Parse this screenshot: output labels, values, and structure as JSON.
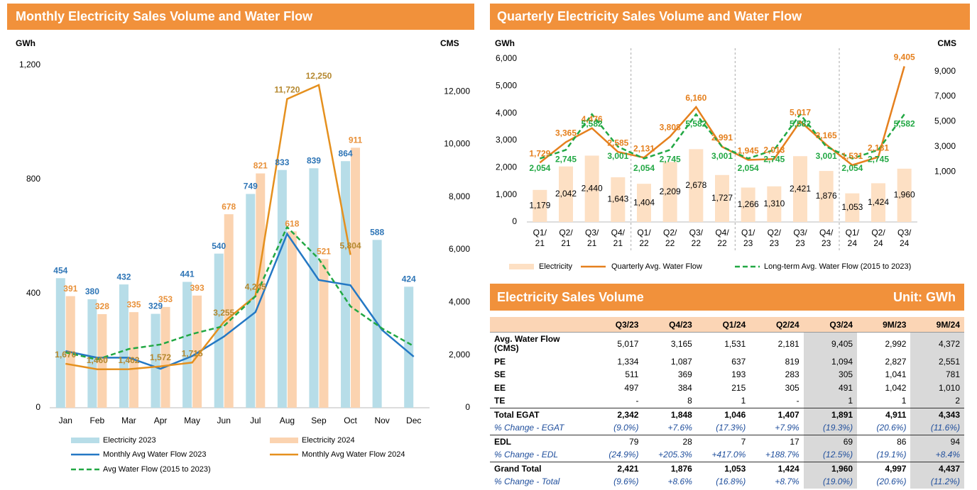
{
  "chart_data": [
    {
      "type": "combo",
      "title": "Monthly Electricity Sales Volume and Water Flow",
      "y_label": "GWh",
      "y2_label": "CMS",
      "categories": [
        "Jan",
        "Feb",
        "Mar",
        "Apr",
        "May",
        "Jun",
        "Jul",
        "Aug",
        "Sep",
        "Oct",
        "Nov",
        "Dec"
      ],
      "ylim": [
        0,
        1200
      ],
      "yticks": [
        0,
        400,
        800,
        {
          "value": 1200,
          "label": "1,200"
        }
      ],
      "y2lim": [
        0,
        13000
      ],
      "y2ticks": [
        0,
        {
          "value": 2000,
          "label": "2,000"
        },
        {
          "value": 4000,
          "label": "4,000"
        },
        {
          "value": 6000,
          "label": "6,000"
        },
        {
          "value": 8000,
          "label": "8,000"
        },
        {
          "value": 10000,
          "label": "10,000"
        },
        {
          "value": 12000,
          "label": "12,000"
        }
      ],
      "series": [
        {
          "name": "Electricity 2023",
          "type": "bar",
          "color": "#b7dde8",
          "label_color": "#2e75b6",
          "values": [
            454,
            380,
            432,
            329,
            441,
            540,
            749,
            833,
            839,
            864,
            588,
            424
          ]
        },
        {
          "name": "Electricity 2024",
          "type": "bar",
          "color": "#fbd3b0",
          "label_color": "#e8913a",
          "values": [
            391,
            328,
            335,
            353,
            393,
            678,
            821,
            618,
            521,
            911,
            null,
            null
          ]
        },
        {
          "name": "Monthly Avg Water Flow 2023",
          "type": "line",
          "axis": "y2",
          "color": "#2478c4",
          "values": [
            2150,
            1900,
            1900,
            1480,
            1960,
            2700,
            3630,
            6600,
            4850,
            4650,
            2950,
            1940
          ]
        },
        {
          "name": "Monthly Avg Water Flow 2024",
          "type": "line",
          "axis": "y2",
          "color": "#e5901e",
          "label_color": "#b5882f",
          "values": [
            1670,
            1460,
            1462,
            1572,
            1715,
            3255,
            4245,
            11720,
            12250,
            5804,
            null,
            null
          ],
          "value_labels": [
            "1,670",
            "1,460",
            "1,462",
            "1,572",
            "1,715",
            "3,255",
            "4,245",
            "11,720",
            "12,250",
            "5,804",
            null,
            null
          ]
        },
        {
          "name": "Avg Water Flow (2015 to 2023)",
          "type": "line",
          "axis": "y2",
          "dash": true,
          "color": "#22a844",
          "values": [
            2100,
            1830,
            2230,
            2400,
            2800,
            3100,
            4230,
            6860,
            5650,
            3850,
            3010,
            2340
          ]
        }
      ]
    },
    {
      "type": "combo",
      "title": "Quarterly Electricity Sales Volume and Water Flow",
      "y_label": "GWh",
      "y2_label": "CMS",
      "categories": [
        "Q1/ 21",
        "Q2/ 21",
        "Q3/ 21",
        "Q4/ 21",
        "Q1/ 22",
        "Q2/ 22",
        "Q3/ 22",
        "Q4/ 22",
        "Q1/ 23",
        "Q2/ 23",
        "Q3/ 23",
        "Q4/ 23",
        "Q1/ 24",
        "Q2/ 24",
        "Q3/ 24"
      ],
      "ylim": [
        0,
        6000
      ],
      "yticks": [
        0,
        {
          "value": 1000,
          "label": "1,000"
        },
        {
          "value": 2000,
          "label": "2,000"
        },
        {
          "value": 3000,
          "label": "3,000"
        },
        {
          "value": 4000,
          "label": "4,000"
        },
        {
          "value": 5000,
          "label": "5,000"
        },
        {
          "value": 6000,
          "label": "6,000"
        }
      ],
      "y2lim": [
        -3000,
        10000
      ],
      "y2ticks": [
        {
          "value": 1000,
          "label": "1,000"
        },
        {
          "value": 3000,
          "label": "3,000"
        },
        {
          "value": 5000,
          "label": "5,000"
        },
        {
          "value": 7000,
          "label": "7,000"
        },
        {
          "value": 9000,
          "label": "9,000"
        }
      ],
      "series": [
        {
          "name": "Electricity",
          "type": "bar",
          "color": "#fde0c4",
          "label_color": "#000000",
          "values": [
            1179,
            2042,
            2440,
            1643,
            1404,
            2209,
            2678,
            1727,
            1266,
            1310,
            2421,
            1876,
            1053,
            1424,
            1960
          ],
          "value_labels": [
            "1,179",
            "2,042",
            "2,440",
            "1,643",
            "1,404",
            "2,209",
            "2,678",
            "1,727",
            "1,266",
            "1,310",
            "2,421",
            "1,876",
            "1,053",
            "1,424",
            "1,960"
          ]
        },
        {
          "name": "Quarterly Avg. Water Flow",
          "type": "line",
          "axis": "y2",
          "color": "#e5801e",
          "label_color": "#e5801e",
          "values": [
            1729,
            3365,
            4476,
            2585,
            2131,
            3808,
            6160,
            2991,
            1945,
            2013,
            5017,
            3165,
            1531,
            2181,
            9405
          ],
          "value_labels": [
            "1,729",
            "3,365",
            "4,476",
            "2,585",
            "2,131",
            "3,808",
            "6,160",
            "2,991",
            "1,945",
            "2,013",
            "5,017",
            "3,165",
            "1,531",
            "2,181",
            "9,405"
          ]
        },
        {
          "name": "Long-term Avg. Water Flow (2015 to 2023)",
          "type": "line",
          "axis": "y2",
          "dash": true,
          "color": "#22a844",
          "label_color": "#22a844",
          "values": [
            2054,
            2745,
            5582,
            3001,
            2054,
            2745,
            5582,
            3001,
            2054,
            2745,
            5582,
            3001,
            2054,
            2745,
            5582
          ],
          "value_labels": [
            "2,054",
            "2,745",
            "5,582",
            "3,001",
            "2,054",
            "2,745",
            "5,582",
            "3,001",
            "2,054",
            "2,745",
            "5,582",
            "3,001",
            "2,054",
            "2,745",
            "5,582"
          ]
        }
      ]
    }
  ],
  "table": {
    "title": "Electricity Sales Volume",
    "unit": "Unit: GWh",
    "columns": [
      "Q3/23",
      "Q4/23",
      "Q1/24",
      "Q2/24",
      "Q3/24",
      "9M/23",
      "9M/24"
    ],
    "rows": [
      {
        "label": "Avg. Water Flow (CMS)",
        "cells": [
          "5,017",
          "3,165",
          "1,531",
          "2,181",
          "9,405",
          "2,992",
          "4,372"
        ]
      },
      {
        "label": "PE",
        "cells": [
          "1,334",
          "1,087",
          "637",
          "819",
          "1,094",
          "2,827",
          "2,551"
        ]
      },
      {
        "label": "SE",
        "cells": [
          "511",
          "369",
          "193",
          "283",
          "305",
          "1,041",
          "781"
        ]
      },
      {
        "label": "EE",
        "cells": [
          "497",
          "384",
          "215",
          "305",
          "491",
          "1,042",
          "1,010"
        ]
      },
      {
        "label": "TE",
        "cells": [
          "-",
          "8",
          "1",
          "-",
          "1",
          "1",
          "2"
        ]
      },
      {
        "label": "Total EGAT",
        "cells": [
          "2,342",
          "1,848",
          "1,046",
          "1,407",
          "1,891",
          "4,911",
          "4,343"
        ]
      },
      {
        "label": "% Change - EGAT",
        "cells": [
          "(9.0%)",
          "+7.6%",
          "(17.3%)",
          "+7.9%",
          "(19.3%)",
          "(20.6%)",
          "(11.6%)"
        ]
      },
      {
        "label": "EDL",
        "cells": [
          "79",
          "28",
          "7",
          "17",
          "69",
          "86",
          "94"
        ]
      },
      {
        "label": "% Change - EDL",
        "cells": [
          "(24.9%)",
          "+205.3%",
          "+417.0%",
          "+188.7%",
          "(12.5%)",
          "(19.1%)",
          "+8.4%"
        ]
      },
      {
        "label": "Grand Total",
        "cells": [
          "2,421",
          "1,876",
          "1,053",
          "1,424",
          "1,960",
          "4,997",
          "4,437"
        ]
      },
      {
        "label": "% Change - Total",
        "cells": [
          "(9.6%)",
          "+8.6%",
          "(16.8%)",
          "+8.7%",
          "(19.0%)",
          "(20.6%)",
          "(11.2%)"
        ]
      }
    ]
  }
}
